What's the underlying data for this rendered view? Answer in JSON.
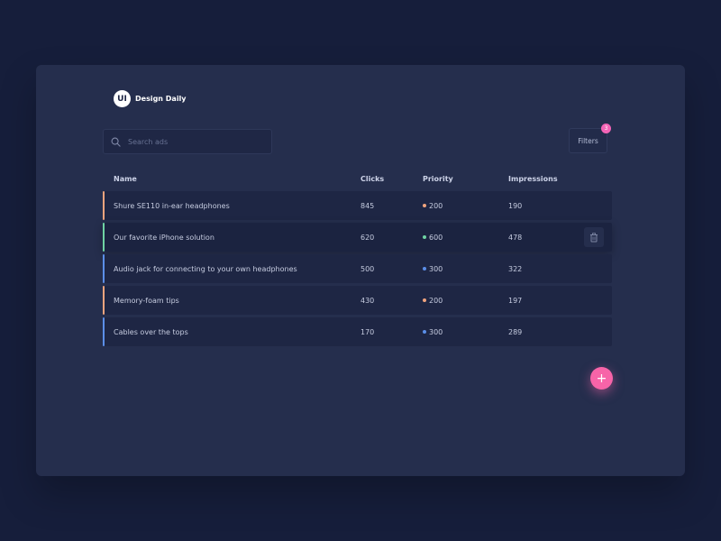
{
  "brand": {
    "logo_text": "UI",
    "name": "Design Daily"
  },
  "search": {
    "placeholder": "Search ads",
    "value": ""
  },
  "filters": {
    "label": "Filters",
    "badge": "3",
    "badge_color": "#f364b6"
  },
  "table": {
    "columns": [
      "Name",
      "Clicks",
      "Priority",
      "Impressions"
    ],
    "rows": [
      {
        "name": "Shure SE110 in-ear headphones",
        "clicks": "845",
        "priority": "200",
        "impressions": "190",
        "stripe_color": "#f0a47e",
        "dot_color": "#f0a47e"
      },
      {
        "name": "Our favorite iPhone solution",
        "clicks": "620",
        "priority": "600",
        "impressions": "478",
        "stripe_color": "#6fd3a3",
        "dot_color": "#6fd3a3",
        "active": true
      },
      {
        "name": "Audio jack for connecting to your own headphones",
        "clicks": "500",
        "priority": "300",
        "impressions": "322",
        "stripe_color": "#5b8ee8",
        "dot_color": "#5b8ee8"
      },
      {
        "name": "Memory-foam tips",
        "clicks": "430",
        "priority": "200",
        "impressions": "197",
        "stripe_color": "#f0a47e",
        "dot_color": "#f0a47e"
      },
      {
        "name": "Cables over the tops",
        "clicks": "170",
        "priority": "300",
        "impressions": "289",
        "stripe_color": "#5b8ee8",
        "dot_color": "#5b8ee8"
      }
    ]
  },
  "icons": {
    "search": "search-icon",
    "trash": "trash-icon",
    "add": "plus-icon"
  },
  "fab": {
    "label": "+",
    "color": "#f764a8"
  }
}
